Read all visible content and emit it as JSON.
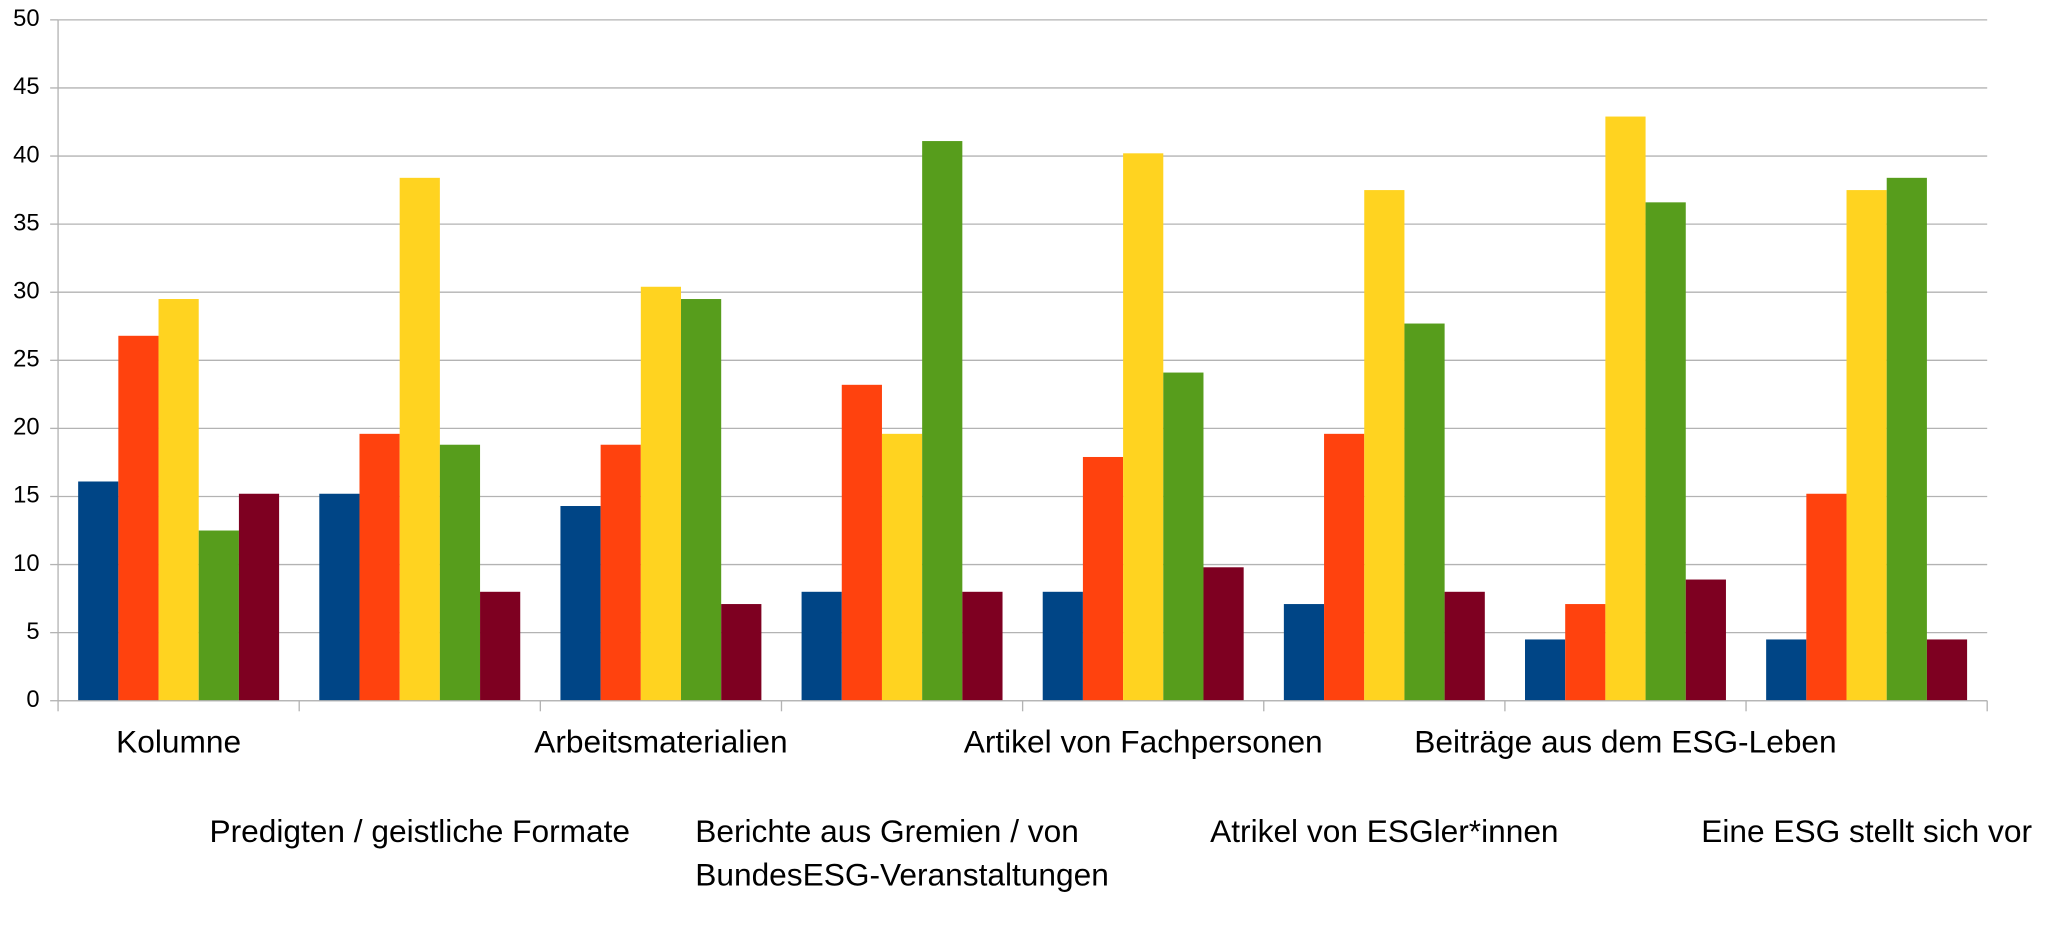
{
  "chart_data": {
    "type": "bar",
    "categories": [
      "Kolumne",
      "Predigten / geistliche Formate",
      "Arbeitsmaterialien",
      "Berichte aus Gremien / von BundesESG-Veranstaltungen",
      "Artikel von Fachpersonen",
      "Atrikel von ESGler*innen",
      "Beiträge aus dem ESG-Leben",
      "Eine ESG stellt sich vor"
    ],
    "series": [
      {
        "color": "#004586",
        "values": [
          16.1,
          15.2,
          14.3,
          8.0,
          8.0,
          7.1,
          4.5,
          4.5
        ]
      },
      {
        "color": "#ff420e",
        "values": [
          26.8,
          19.6,
          18.8,
          23.2,
          17.9,
          19.6,
          7.1,
          15.2
        ]
      },
      {
        "color": "#ffd320",
        "values": [
          29.5,
          38.4,
          30.4,
          19.6,
          40.2,
          37.5,
          42.9,
          37.5
        ]
      },
      {
        "color": "#579d1c",
        "values": [
          12.5,
          18.8,
          29.5,
          41.1,
          24.1,
          27.7,
          36.6,
          38.4
        ]
      },
      {
        "color": "#7e0021",
        "values": [
          15.2,
          8.0,
          7.1,
          8.0,
          9.8,
          8.0,
          8.9,
          4.5
        ]
      }
    ],
    "ylim": [
      0,
      50
    ],
    "yticks": [
      0,
      5,
      10,
      15,
      20,
      25,
      30,
      35,
      40,
      45,
      50
    ],
    "grid": true
  }
}
